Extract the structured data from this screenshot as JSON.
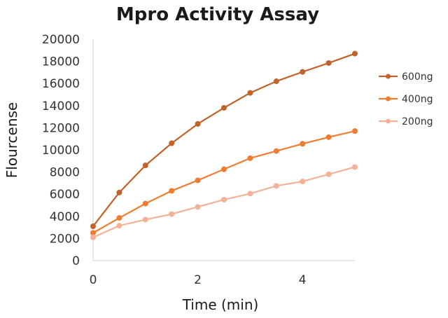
{
  "chart_data": {
    "type": "line",
    "title": "Mpro Activity Assay",
    "xlabel": "Time (min)",
    "ylabel": "Flourcense",
    "xlim": [
      0,
      5
    ],
    "ylim": [
      0,
      20000
    ],
    "xticks": [
      "0",
      "2",
      "4"
    ],
    "yticks": [
      "0",
      "2000",
      "4000",
      "6000",
      "8000",
      "10000",
      "12000",
      "14000",
      "16000",
      "18000",
      "20000"
    ],
    "grid": false,
    "legend_position": "right",
    "x": [
      0,
      0.5,
      1,
      1.5,
      2,
      2.5,
      3,
      3.5,
      4,
      4.5,
      5
    ],
    "series": [
      {
        "name": "600ng",
        "color": "#c0622a",
        "values": [
          3100,
          6150,
          8600,
          10600,
          12350,
          13800,
          15150,
          16200,
          17050,
          17850,
          18700
        ]
      },
      {
        "name": "400ng",
        "color": "#ee7d31",
        "values": [
          2500,
          3850,
          5150,
          6300,
          7250,
          8250,
          9250,
          9900,
          10550,
          11150,
          11700
        ]
      },
      {
        "name": "200ng",
        "color": "#f4b196",
        "values": [
          2100,
          3150,
          3700,
          4200,
          4850,
          5500,
          6050,
          6750,
          7150,
          7800,
          8450
        ]
      }
    ]
  }
}
